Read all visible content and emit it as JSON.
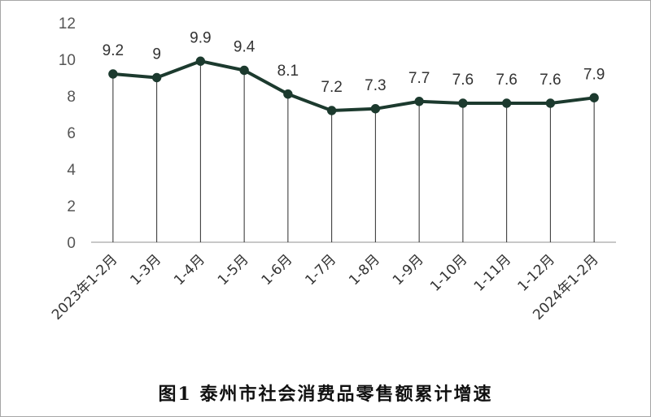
{
  "caption": "图1 泰州市社会消费品零售额累计增速",
  "colors": {
    "line": "#1c3a2e",
    "axis": "#a6a6a6",
    "drop_line": "#2b2b2b"
  },
  "chart_data": {
    "type": "line",
    "title": "图1 泰州市社会消费品零售额累计增速",
    "categories": [
      "2023年1-2月",
      "1-3月",
      "1-4月",
      "1-5月",
      "1-6月",
      "1-7月",
      "1-8月",
      "1-9月",
      "1-10月",
      "1-11月",
      "1-12月",
      "2024年1-2月"
    ],
    "values": [
      9.2,
      9,
      9.9,
      9.4,
      8.1,
      7.2,
      7.3,
      7.7,
      7.6,
      7.6,
      7.6,
      7.9
    ],
    "labels": [
      "9.2",
      "9",
      "9.9",
      "9.4",
      "8.1",
      "7.2",
      "7.3",
      "7.7",
      "7.6",
      "7.6",
      "7.6",
      "7.9"
    ],
    "y_ticks": [
      "0",
      "2",
      "4",
      "6",
      "8",
      "10",
      "12"
    ],
    "ylim": [
      0,
      12
    ],
    "xlabel": "",
    "ylabel": "",
    "grid": false,
    "legend": "none",
    "markers": "circle",
    "drop_lines": true
  }
}
